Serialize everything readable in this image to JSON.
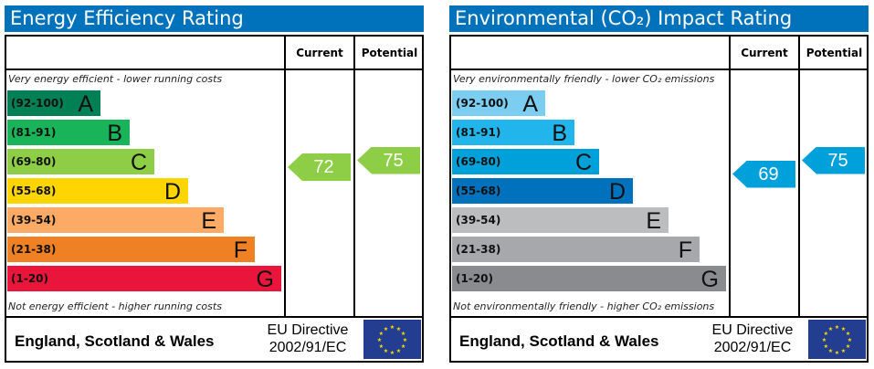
{
  "headers": {
    "current": "Current",
    "potential": "Potential"
  },
  "footer": {
    "region": "England, Scotland & Wales",
    "directive_line1": "EU Directive",
    "directive_line2": "2002/91/EC"
  },
  "chart_data": [
    {
      "type": "bar",
      "title": "Energy Efficiency Rating",
      "top_note": "Very energy efficient - lower running costs",
      "bottom_note": "Not energy efficient - higher running costs",
      "bands": [
        {
          "range": "(92-100)",
          "letter": "A",
          "color": "#008054"
        },
        {
          "range": "(81-91)",
          "letter": "B",
          "color": "#19b459"
        },
        {
          "range": "(69-80)",
          "letter": "C",
          "color": "#8dce46"
        },
        {
          "range": "(55-68)",
          "letter": "D",
          "color": "#ffd500"
        },
        {
          "range": "(39-54)",
          "letter": "E",
          "color": "#fcaa65"
        },
        {
          "range": "(21-38)",
          "letter": "F",
          "color": "#ef8023"
        },
        {
          "range": "(1-20)",
          "letter": "G",
          "color": "#e9153b"
        }
      ],
      "current": {
        "value": 72,
        "color": "#8dce46"
      },
      "potential": {
        "value": 75,
        "color": "#8dce46"
      }
    },
    {
      "type": "bar",
      "title": "Environmental (CO₂) Impact Rating",
      "top_note": "Very environmentally friendly - lower CO₂ emissions",
      "bottom_note": "Not environmentally friendly - higher CO₂ emissions",
      "bands": [
        {
          "range": "(92-100)",
          "letter": "A",
          "color": "#7ccdf2"
        },
        {
          "range": "(81-91)",
          "letter": "B",
          "color": "#22b5eb"
        },
        {
          "range": "(69-80)",
          "letter": "C",
          "color": "#00a0db"
        },
        {
          "range": "(55-68)",
          "letter": "D",
          "color": "#0071bc"
        },
        {
          "range": "(39-54)",
          "letter": "E",
          "color": "#bbbdbf"
        },
        {
          "range": "(21-38)",
          "letter": "F",
          "color": "#a6a8ab"
        },
        {
          "range": "(1-20)",
          "letter": "G",
          "color": "#8a8b8e"
        }
      ],
      "current": {
        "value": 69,
        "color": "#00a0db"
      },
      "potential": {
        "value": 75,
        "color": "#00a0db"
      }
    }
  ]
}
